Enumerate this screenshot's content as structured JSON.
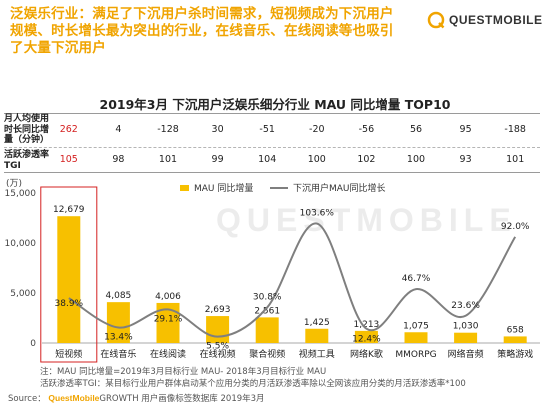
{
  "headline": {
    "line1": "泛娱乐行业：满足了下沉用户杀时间需求，短视频成为下沉用户",
    "line2": "规模、时长增长最为突出的行业，在线音乐、在线阅读等也吸引",
    "line3": "了大量下沉用户"
  },
  "brand": {
    "name": "QUESTMOBILE",
    "watermark": "QUESTMOBILE"
  },
  "table": {
    "row1_label": [
      "月人均使用",
      "时长同比增",
      "量（分钟）"
    ],
    "row1_values": [
      "262",
      "4",
      "-128",
      "30",
      "-51",
      "-20",
      "-56",
      "56",
      "95",
      "-188"
    ],
    "row2_label": [
      "活跃渗透率",
      "TGI"
    ],
    "row2_values": [
      "105",
      "98",
      "101",
      "99",
      "104",
      "100",
      "102",
      "100",
      "93",
      "101"
    ]
  },
  "footnotes": {
    "note1": "注：MAU 同比增量=2019年3月目标行业 MAU- 2018年3月目标行业 MAU",
    "note2": "活跃渗透率TGI：某目标行业用户群体启动某个应用分类的月活跃渗透率除以全网该应用分类的月活跃渗透率*100",
    "source_prefix": "Source：",
    "source_brand": "QuestMobile",
    "source_rest": "GROWTH 用户画像标签数据库 2019年3月"
  },
  "chart_data": {
    "type": "bar",
    "title": "2019年3月 下沉用户泛娱乐细分行业 MAU 同比增量 TOP10",
    "unit_label": "(万)",
    "categories": [
      "短视频",
      "在线音乐",
      "在线阅读",
      "在线视频",
      "聚合视频",
      "视频工具",
      "网络K歌",
      "MMORPG",
      "网络音频",
      "策略游戏"
    ],
    "series": [
      {
        "name": "MAU 同比增量",
        "values": [
          12679,
          4085,
          4006,
          2693,
          2561,
          1425,
          1213,
          1075,
          1030,
          658
        ],
        "labels": [
          "12,679",
          "4,085",
          "4,006",
          "2,693",
          "2,561",
          "1,425",
          "1,213",
          "1,075",
          "1,030",
          "658"
        ],
        "axis": "left"
      },
      {
        "name": "下沉用户MAU同比增长",
        "values": [
          38.9,
          13.4,
          29.1,
          5.5,
          30.8,
          103.6,
          12.4,
          46.7,
          23.6,
          92.0
        ],
        "labels": [
          "38.9%",
          "13.4%",
          "29.1%",
          "5.5%",
          "30.8%",
          "103.6%",
          "12.4%",
          "46.7%",
          "23.6%",
          "92.0%"
        ],
        "axis": "right"
      }
    ],
    "yticks": [
      "0",
      "5,000",
      "10,000",
      "15,000"
    ],
    "ylim": [
      0,
      15000
    ],
    "y2lim": [
      0,
      130
    ],
    "legend": "top-center",
    "highlight_category": "短视频",
    "colors": {
      "bar": "#f7c000",
      "line": "#7f7f7f",
      "highlight_box": "#d42020",
      "headline": "#f0a400"
    }
  }
}
